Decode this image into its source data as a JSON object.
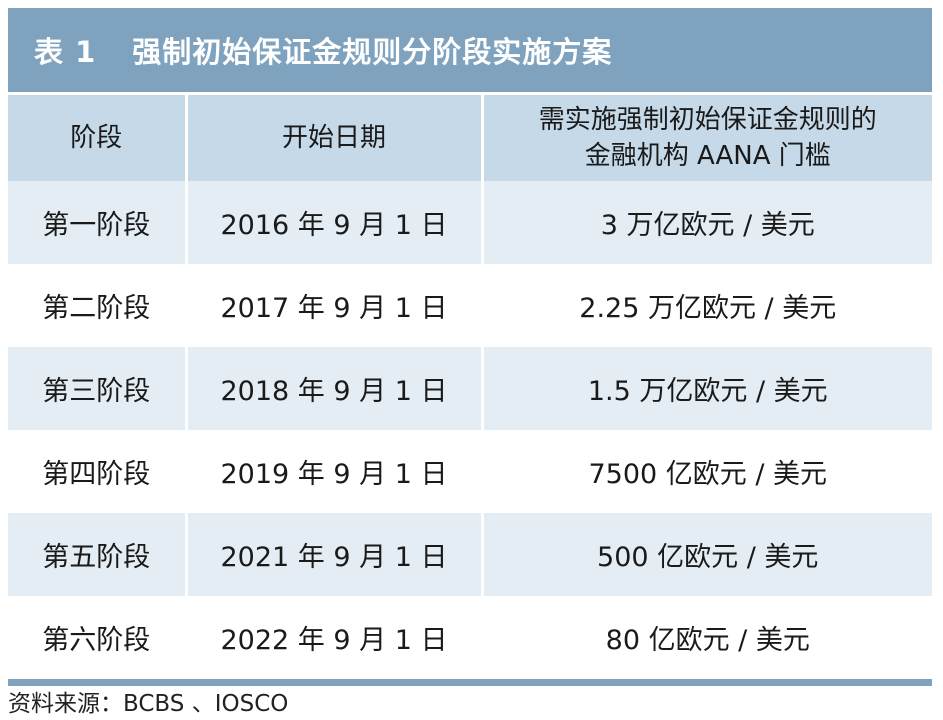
{
  "table": {
    "title_label": "表 1",
    "title_text": "强制初始保证金规则分阶段实施方案",
    "headers": {
      "phase": "阶段",
      "start_date": "开始日期",
      "threshold_line1": "需实施强制初始保证金规则的",
      "threshold_line2": "金融机构 AANA 门槛"
    },
    "rows": [
      {
        "phase": "第一阶段",
        "start_date": "2016 年 9 月 1 日",
        "threshold": "3 万亿欧元 / 美元"
      },
      {
        "phase": "第二阶段",
        "start_date": "2017 年 9 月 1 日",
        "threshold": "2.25 万亿欧元 / 美元"
      },
      {
        "phase": "第三阶段",
        "start_date": "2018 年 9 月 1 日",
        "threshold": "1.5 万亿欧元 / 美元"
      },
      {
        "phase": "第四阶段",
        "start_date": "2019 年 9 月 1 日",
        "threshold": "7500 亿欧元 / 美元"
      },
      {
        "phase": "第五阶段",
        "start_date": "2021 年 9 月 1 日",
        "threshold": "500 亿欧元 / 美元"
      },
      {
        "phase": "第六阶段",
        "start_date": "2022 年 9 月 1 日",
        "threshold": "80 亿欧元 / 美元"
      }
    ]
  },
  "source": "资料来源：BCBS 、IOSCO",
  "colors": {
    "title_bg": "#7fa3bf",
    "header_bg": "#c6d9e8",
    "row_shaded": "#e4edf4",
    "row_plain": "#ffffff"
  }
}
